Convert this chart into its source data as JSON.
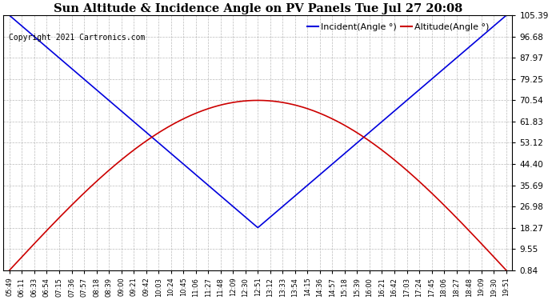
{
  "title": "Sun Altitude & Incidence Angle on PV Panels Tue Jul 27 20:08",
  "copyright": "Copyright 2021 Cartronics.com",
  "legend_incident": "Incident(Angle °)",
  "legend_altitude": "Altitude(Angle °)",
  "incident_color": "#0000DD",
  "altitude_color": "#CC0000",
  "background_color": "#FFFFFF",
  "grid_color": "#AAAAAA",
  "yticks": [
    0.84,
    9.55,
    18.27,
    26.98,
    35.69,
    44.4,
    53.12,
    61.83,
    70.54,
    79.25,
    87.97,
    96.68,
    105.39
  ],
  "x_labels": [
    "05:49",
    "06:11",
    "06:33",
    "06:54",
    "07:15",
    "07:36",
    "07:57",
    "08:18",
    "08:39",
    "09:00",
    "09:21",
    "09:42",
    "10:03",
    "10:24",
    "10:45",
    "11:06",
    "11:27",
    "11:48",
    "12:09",
    "12:30",
    "12:51",
    "13:12",
    "13:33",
    "13:54",
    "14:15",
    "14:36",
    "14:57",
    "15:18",
    "15:39",
    "16:00",
    "16:21",
    "16:42",
    "17:03",
    "17:24",
    "17:45",
    "18:06",
    "18:27",
    "18:48",
    "19:09",
    "19:30",
    "19:51"
  ],
  "n_points": 41,
  "incident_min": 18.27,
  "incident_max": 105.39,
  "altitude_min": 0.84,
  "altitude_max": 70.54
}
